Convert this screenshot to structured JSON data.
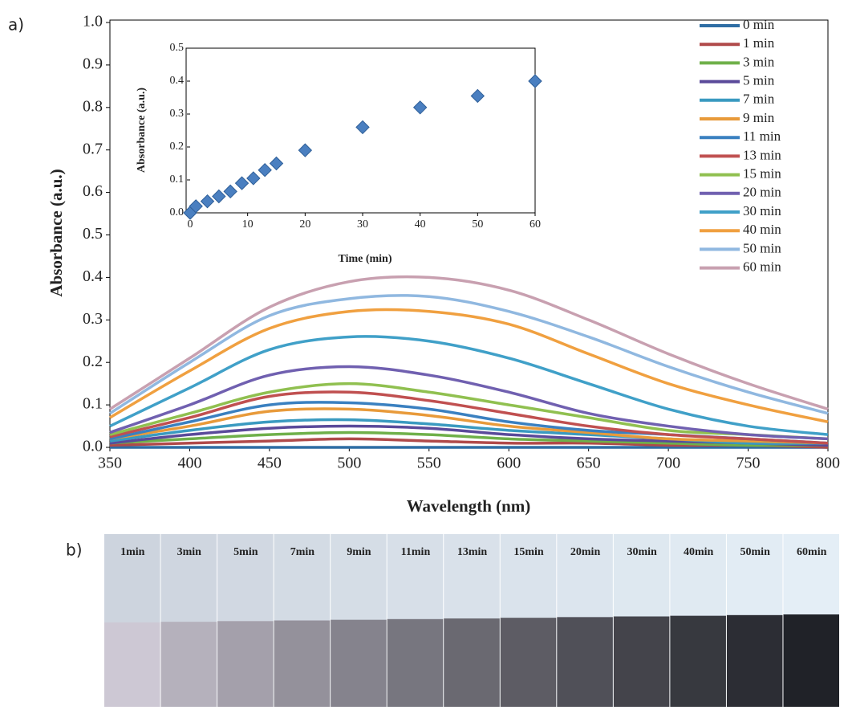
{
  "panel_labels": [
    "a)",
    "b)"
  ],
  "chart_data": [
    {
      "type": "line",
      "ylabel": "Absorbance (a.u.)",
      "xlabel": "Wavelength (nm)",
      "x": [
        350,
        400,
        450,
        500,
        550,
        600,
        650,
        700,
        750,
        800
      ],
      "xlim": [
        350,
        800
      ],
      "xticks": [
        350,
        400,
        450,
        500,
        550,
        600,
        650,
        700,
        750,
        800
      ],
      "ylim": [
        0,
        1
      ],
      "yticks": [
        {
          "value": 0,
          "label": "0.0"
        },
        0.1,
        0.2,
        0.3,
        0.4,
        0.5,
        0.6,
        0.7,
        0.8,
        0.9,
        {
          "value": 1,
          "label": "1.0"
        }
      ],
      "series": [
        {
          "name": "0 min",
          "color": "#2e6da4",
          "values": [
            0,
            0,
            0,
            0,
            0,
            0,
            0,
            0,
            0,
            0
          ]
        },
        {
          "name": "1 min",
          "color": "#b04a4a",
          "values": [
            0.005,
            0.01,
            0.015,
            0.02,
            0.015,
            0.01,
            0.01,
            0.005,
            0.005,
            0
          ]
        },
        {
          "name": "3 min",
          "color": "#6fb04a",
          "values": [
            0.01,
            0.02,
            0.03,
            0.035,
            0.03,
            0.02,
            0.015,
            0.01,
            0.005,
            0.005
          ]
        },
        {
          "name": "5 min",
          "color": "#5a4a9a",
          "values": [
            0.01,
            0.03,
            0.045,
            0.05,
            0.045,
            0.03,
            0.02,
            0.015,
            0.01,
            0.005
          ]
        },
        {
          "name": "7 min",
          "color": "#3a9ac0",
          "values": [
            0.015,
            0.04,
            0.06,
            0.065,
            0.055,
            0.04,
            0.03,
            0.02,
            0.01,
            0.01
          ]
        },
        {
          "name": "9 min",
          "color": "#e89a3a",
          "values": [
            0.02,
            0.05,
            0.085,
            0.09,
            0.075,
            0.05,
            0.035,
            0.02,
            0.015,
            0.01
          ]
        },
        {
          "name": "11 min",
          "color": "#3a80c0",
          "values": [
            0.02,
            0.06,
            0.1,
            0.105,
            0.09,
            0.06,
            0.04,
            0.03,
            0.02,
            0.01
          ]
        },
        {
          "name": "13 min",
          "color": "#c05050",
          "values": [
            0.025,
            0.07,
            0.12,
            0.13,
            0.11,
            0.08,
            0.05,
            0.03,
            0.02,
            0.01
          ]
        },
        {
          "name": "15 min",
          "color": "#90c050",
          "values": [
            0.03,
            0.08,
            0.13,
            0.15,
            0.13,
            0.1,
            0.07,
            0.04,
            0.03,
            0.02
          ]
        },
        {
          "name": "20 min",
          "color": "#7060b0",
          "values": [
            0.035,
            0.1,
            0.17,
            0.19,
            0.17,
            0.13,
            0.08,
            0.05,
            0.03,
            0.02
          ]
        },
        {
          "name": "30 min",
          "color": "#40a0c8",
          "values": [
            0.05,
            0.14,
            0.23,
            0.26,
            0.25,
            0.21,
            0.15,
            0.09,
            0.05,
            0.03
          ]
        },
        {
          "name": "40 min",
          "color": "#f0a040",
          "values": [
            0.07,
            0.18,
            0.28,
            0.32,
            0.32,
            0.29,
            0.22,
            0.15,
            0.1,
            0.06
          ]
        },
        {
          "name": "50 min",
          "color": "#90b8e0",
          "values": [
            0.08,
            0.2,
            0.31,
            0.35,
            0.355,
            0.32,
            0.26,
            0.19,
            0.13,
            0.08
          ]
        },
        {
          "name": "60 min",
          "color": "#c8a0b0",
          "values": [
            0.09,
            0.21,
            0.33,
            0.39,
            0.4,
            0.37,
            0.3,
            0.22,
            0.15,
            0.09
          ]
        }
      ]
    },
    {
      "type": "scatter",
      "ylabel": "Absorbance (a.u.)",
      "xlabel": "Time (min)",
      "color": "#4a7fc0",
      "x": [
        0,
        1,
        3,
        5,
        7,
        9,
        11,
        13,
        15,
        20,
        30,
        40,
        50,
        60
      ],
      "values": [
        0,
        0.02,
        0.035,
        0.05,
        0.065,
        0.09,
        0.105,
        0.13,
        0.15,
        0.19,
        0.26,
        0.32,
        0.355,
        0.4
      ],
      "xlim": [
        0,
        60
      ],
      "xticks": [
        0,
        10,
        20,
        30,
        40,
        50,
        60
      ],
      "ylim": [
        0,
        0.5
      ],
      "yticks": [
        {
          "value": 0,
          "label": "0.0"
        },
        0.1,
        0.2,
        0.3,
        0.4,
        0.5
      ]
    }
  ],
  "photo": {
    "labels": [
      "1min",
      "3min",
      "5min",
      "7min",
      "9min",
      "11min",
      "13min",
      "15min",
      "20min",
      "30min",
      "40min",
      "50min",
      "60min"
    ]
  }
}
